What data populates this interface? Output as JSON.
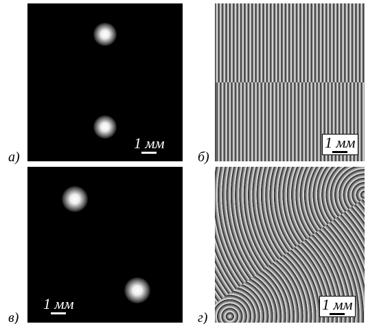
{
  "panels": [
    {
      "label": "а)",
      "scale": "1 мм"
    },
    {
      "label": "б)",
      "scale": "1 мм"
    },
    {
      "label": "в)",
      "scale": "1 мм"
    },
    {
      "label": "г)",
      "scale": "1 мм"
    }
  ]
}
